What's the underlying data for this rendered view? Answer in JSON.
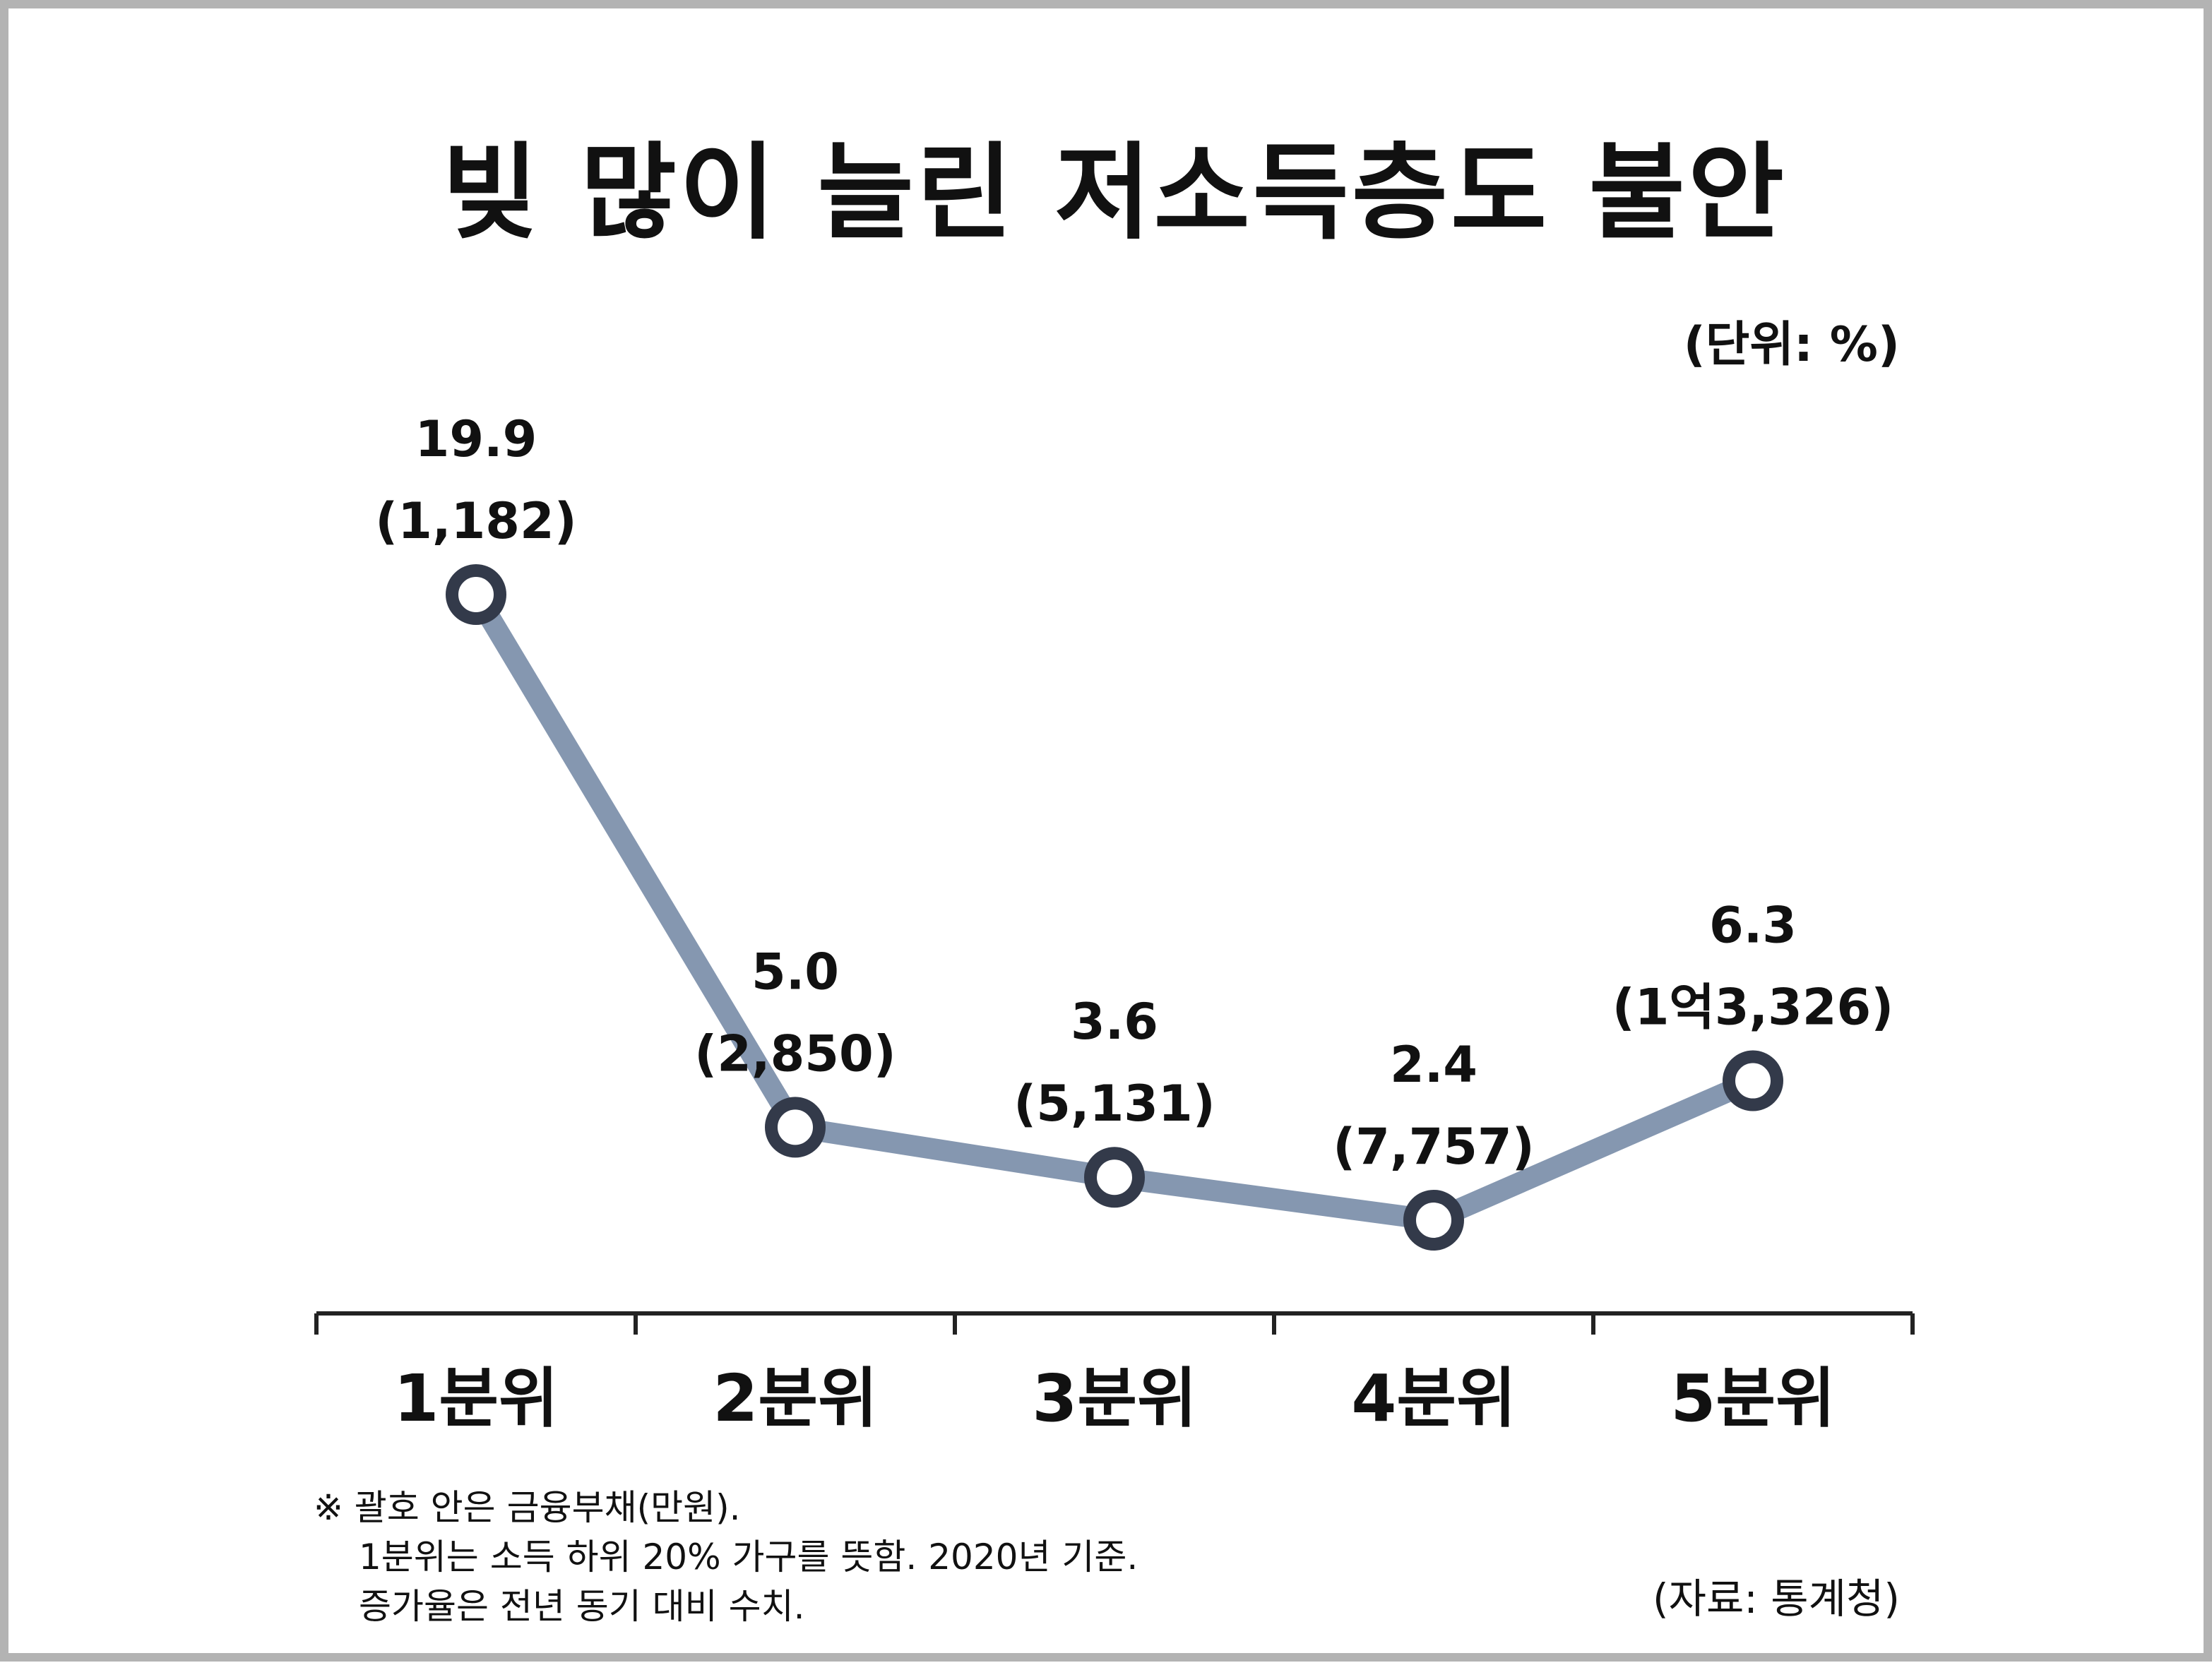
{
  "title": "빚 많이 늘린 저소득층도 불안",
  "unit_label": "(단위: %)",
  "chart_data": {
    "type": "line",
    "title": "빚 많이 늘린 저소득층도 불안",
    "categories": [
      "1분위",
      "2분위",
      "3분위",
      "4분위",
      "5분위"
    ],
    "series": [
      {
        "values": [
          19.9,
          5.0,
          3.6,
          2.4,
          6.3
        ],
        "value_labels": [
          "19.9",
          "5.0",
          "3.6",
          "2.4",
          "6.3"
        ],
        "debt_labels": [
          "(1,182)",
          "(2,850)",
          "(5,131)",
          "(7,757)",
          "(1억3,326)"
        ]
      }
    ],
    "ylim": [
      0,
      22
    ],
    "grid": false,
    "colors": {
      "line": "#8597b0",
      "marker_stroke": "#333a4a",
      "marker_fill": "#ffffff"
    }
  },
  "notes": [
    "※ 괄호 안은 금융부채(만원).",
    "1분위는 소득 하위 20% 가구를 뜻함. 2020년 기준.",
    "증가율은 전년 동기 대비 수치."
  ],
  "source": "(자료: 통계청)"
}
